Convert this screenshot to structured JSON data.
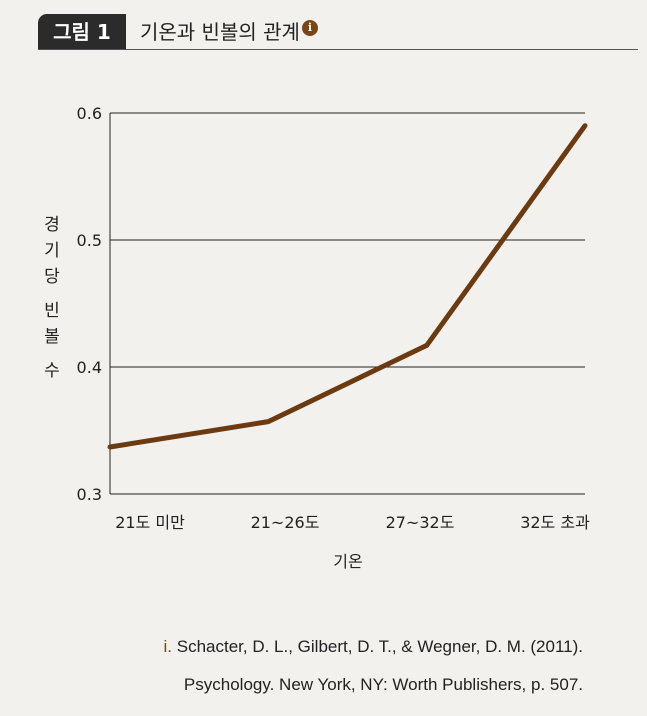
{
  "figure": {
    "label": "그림 1",
    "title": "기온과 빈볼의 관계",
    "title_note": "i"
  },
  "chart_data": {
    "type": "line",
    "categories": [
      "21도 미만",
      "21~26도",
      "27~32도",
      "32도 초과"
    ],
    "values": [
      0.337,
      0.357,
      0.417,
      0.59
    ],
    "xlabel": "기온",
    "ylabel": "경기당 빈볼 수",
    "ylim": [
      0.3,
      0.6
    ],
    "yticks": [
      "0.6",
      "0.5",
      "0.4",
      "0.3"
    ],
    "grid": true,
    "line_color": "#6b3a10"
  },
  "citation": {
    "marker": "i.",
    "line1": "Schacter, D. L., Gilbert, D. T., & Wegner, D. M. (2011).",
    "line2": "Psychology. New York, NY: Worth Publishers, p. 507."
  }
}
